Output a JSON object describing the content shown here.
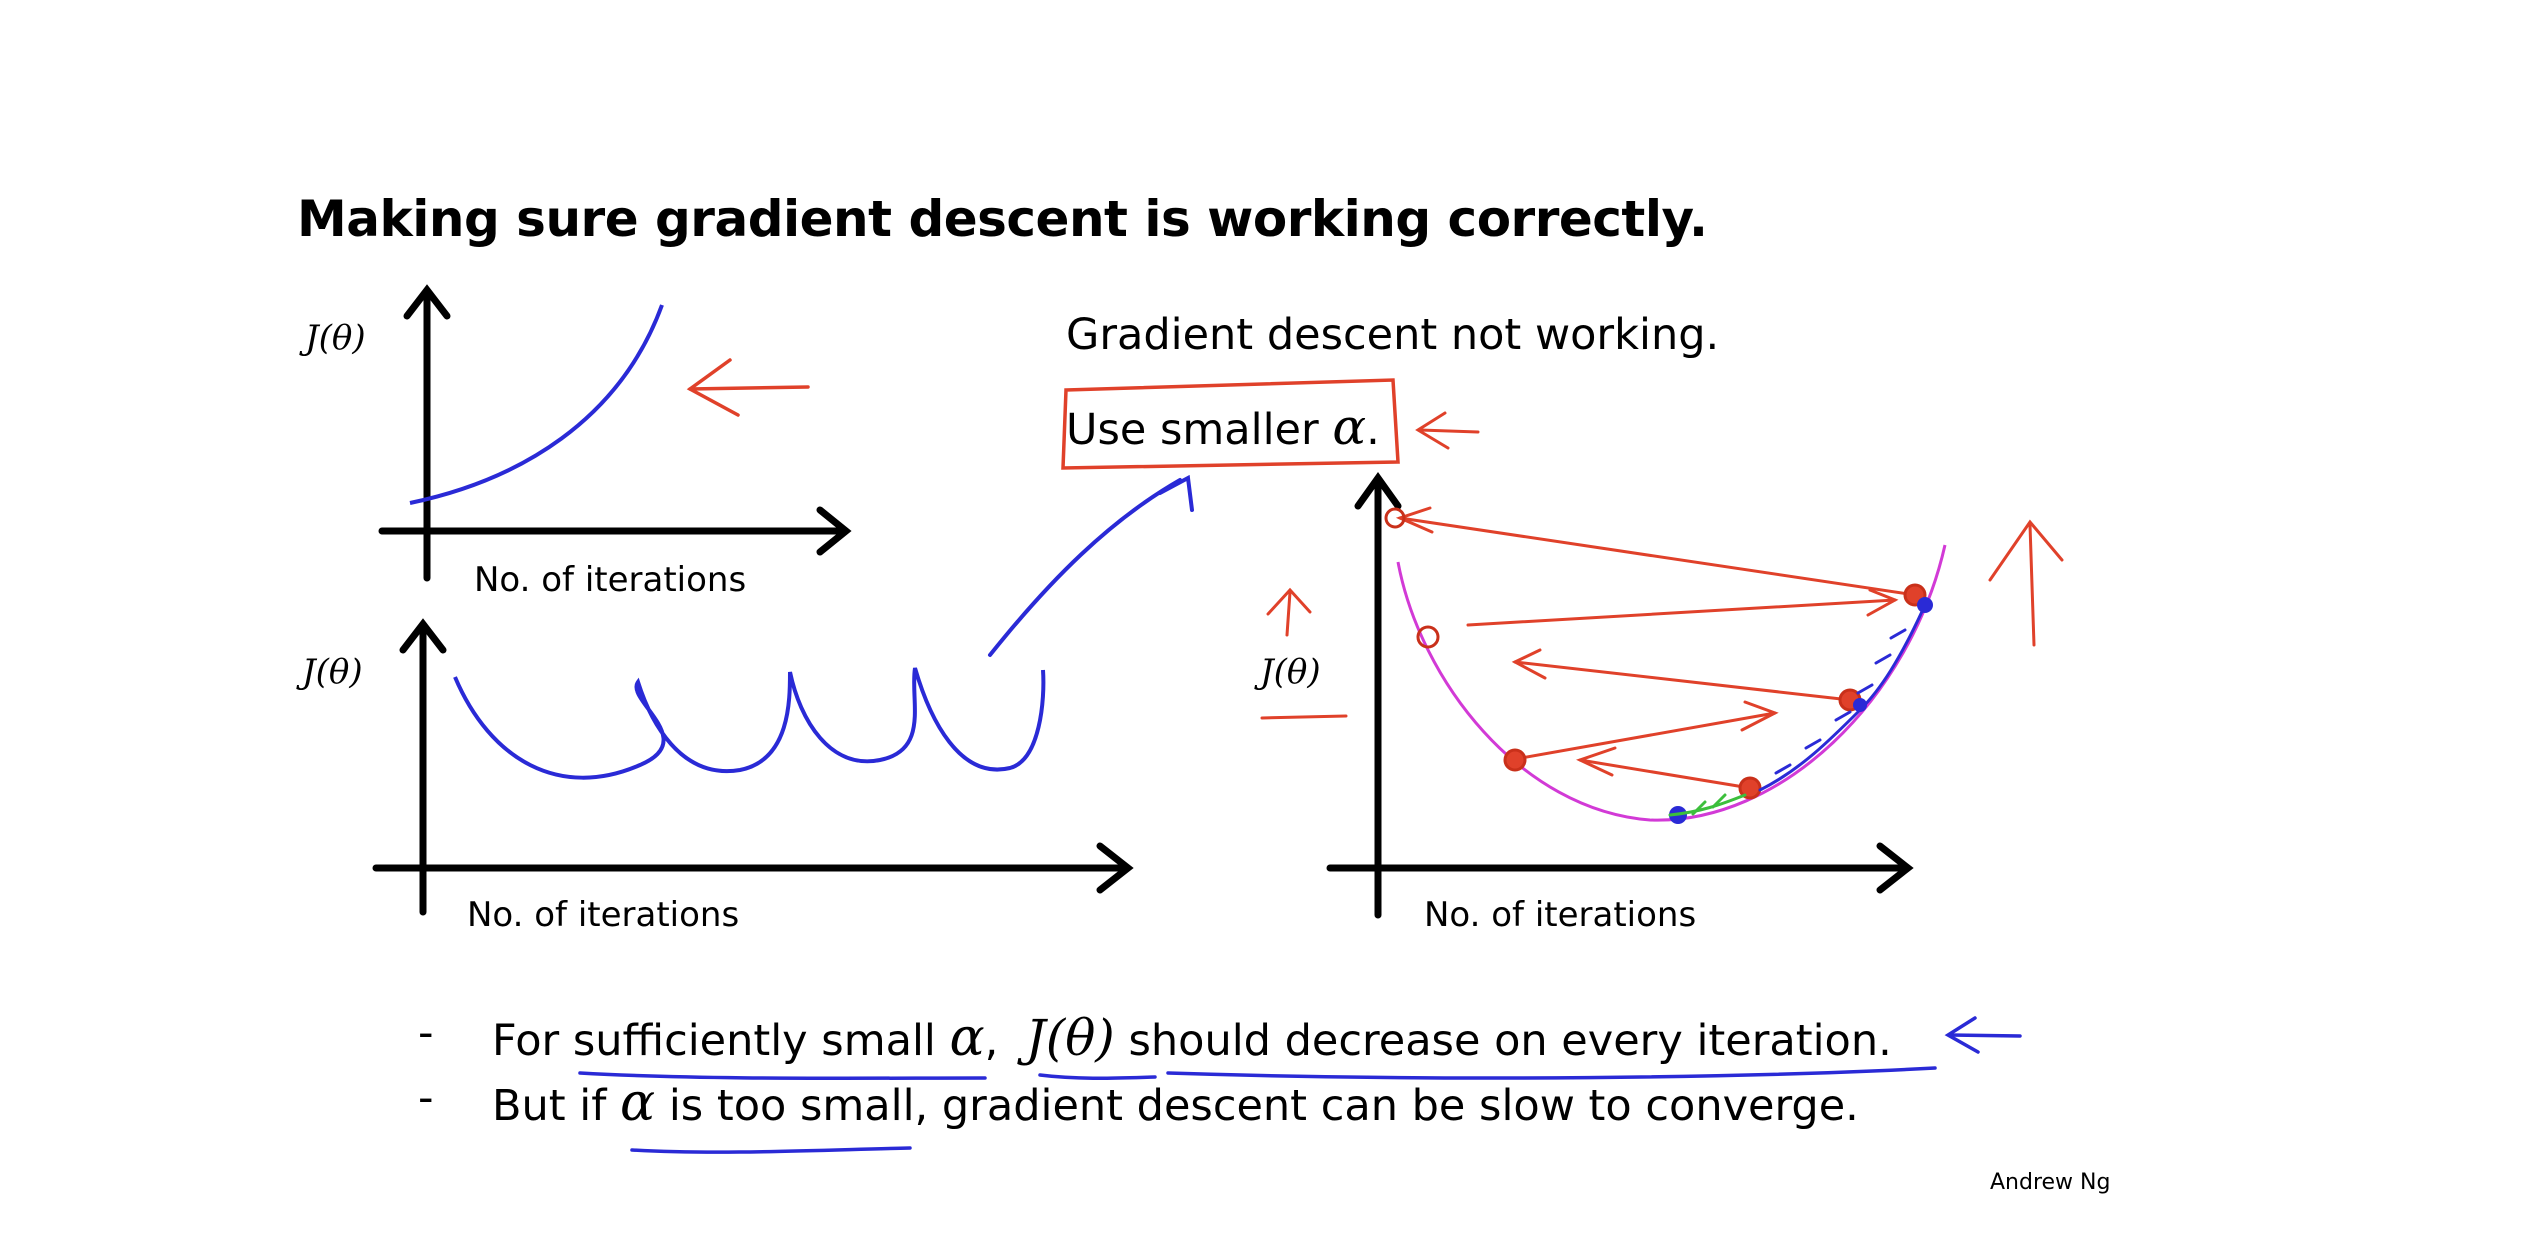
{
  "slide": {
    "title": "Making sure gradient descent is working correctly.",
    "credit": "Andrew Ng"
  },
  "plots": {
    "top_left": {
      "ylabel": "J(θ)",
      "xlabel": "No. of iterations"
    },
    "bottom_left": {
      "ylabel": "J(θ)",
      "xlabel": "No. of iterations"
    },
    "right": {
      "ylabel": "J(θ)",
      "xlabel": "No. of iterations"
    }
  },
  "notes": {
    "line1": "Gradient descent not working.",
    "line2_text": "Use smaller ",
    "line2_symbol": "α",
    "line2_end": "."
  },
  "bullets": [
    {
      "dash": "-",
      "part1": "For sufficiently small ",
      "alpha": "α",
      "comma": ",",
      "j": "J(θ)",
      "part2": " should decrease on every iteration."
    },
    {
      "dash": "-",
      "part1": "But if ",
      "alpha": "α",
      "part2": " is too small, gradient descent can be slow to converge."
    }
  ],
  "colors": {
    "ink_blue": "#2a2ad6",
    "ink_red": "#e0412a",
    "curve_magenta": "#d23ad6",
    "ink_green": "#3cbf3c",
    "axis": "#000000"
  }
}
